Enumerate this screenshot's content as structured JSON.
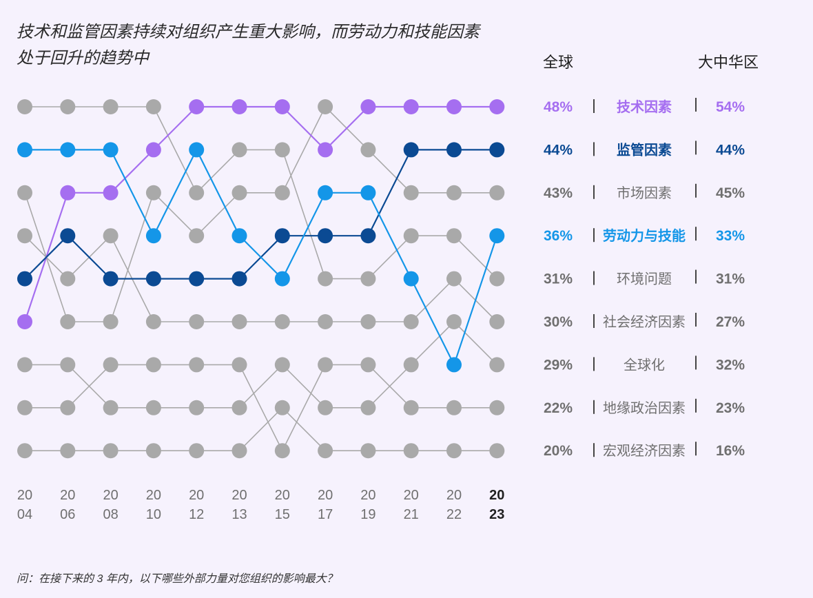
{
  "title": {
    "line1": "技术和监管因素持续对组织产生重大影响，而劳动力和技能因素",
    "line2": "处于回升的趋势中"
  },
  "footer": {
    "question": "问：在接下来的 3 年内，以下哪些外部力量对您组织的影响最大？"
  },
  "colors": {
    "background": "#f6f2fd",
    "grey": "#a9a9a9",
    "grey_text": "#6f6f6f",
    "purple": "#a56ef0",
    "dark_blue": "#0b4a93",
    "light_blue": "#1496e8",
    "header_text": "#1f1f1f"
  },
  "chart_data": {
    "type": "bump",
    "title": "技术和监管因素持续对组织产生重大影响，而劳动力和技能因素处于回升的趋势中",
    "x_labels": [
      [
        "20",
        "04"
      ],
      [
        "20",
        "06"
      ],
      [
        "20",
        "08"
      ],
      [
        "20",
        "10"
      ],
      [
        "20",
        "12"
      ],
      [
        "20",
        "13"
      ],
      [
        "20",
        "15"
      ],
      [
        "20",
        "17"
      ],
      [
        "20",
        "19"
      ],
      [
        "20",
        "21"
      ],
      [
        "20",
        "22"
      ],
      [
        "20",
        "23"
      ]
    ],
    "y_axis": "rank (1 = top)",
    "ranks": 9,
    "column_headers": {
      "global": "全球",
      "greater_china": "大中华区"
    },
    "series": [
      {
        "name": "技术因素",
        "color_key": "purple",
        "highlight": true,
        "ranks": [
          6,
          3,
          3,
          2,
          1,
          1,
          1,
          2,
          1,
          1,
          1,
          1
        ],
        "global": "48%",
        "china": "54%"
      },
      {
        "name": "监管因素",
        "color_key": "dark_blue",
        "highlight": true,
        "ranks": [
          5,
          4,
          5,
          5,
          5,
          5,
          4,
          4,
          4,
          2,
          2,
          2
        ],
        "global": "44%",
        "china": "44%"
      },
      {
        "name": "市场因素",
        "color_key": "grey",
        "highlight": false,
        "ranks": [
          3,
          6,
          6,
          3,
          4,
          3,
          3,
          1,
          2,
          3,
          3,
          3
        ],
        "global": "43%",
        "china": "45%"
      },
      {
        "name": "劳动力与技能",
        "color_key": "light_blue",
        "highlight": true,
        "ranks": [
          2,
          2,
          2,
          4,
          2,
          4,
          5,
          3,
          3,
          5,
          7,
          4
        ],
        "global": "36%",
        "china": "33%"
      },
      {
        "name": "环境问题",
        "color_key": "grey",
        "highlight": false,
        "ranks": [
          1,
          1,
          1,
          1,
          3,
          2,
          2,
          5,
          5,
          4,
          4,
          5
        ],
        "global": "31%",
        "china": "31%"
      },
      {
        "name": "社会经济因素",
        "color_key": "grey",
        "highlight": false,
        "ranks": [
          4,
          5,
          4,
          6,
          6,
          6,
          6,
          6,
          6,
          6,
          5,
          6
        ],
        "global": "30%",
        "china": "27%"
      },
      {
        "name": "全球化",
        "color_key": "grey",
        "highlight": false,
        "ranks": [
          7,
          7,
          8,
          8,
          8,
          8,
          7,
          8,
          8,
          7,
          6,
          7
        ],
        "global": "29%",
        "china": "32%"
      },
      {
        "name": "地缘政治因素",
        "color_key": "grey",
        "highlight": false,
        "ranks": [
          8,
          8,
          7,
          7,
          7,
          7,
          9,
          7,
          7,
          8,
          8,
          8
        ],
        "global": "22%",
        "china": "23%"
      },
      {
        "name": "宏观经济因素",
        "color_key": "grey",
        "highlight": false,
        "ranks": [
          9,
          9,
          9,
          9,
          9,
          9,
          8,
          9,
          9,
          9,
          9,
          9
        ],
        "global": "20%",
        "china": "16%"
      }
    ]
  }
}
